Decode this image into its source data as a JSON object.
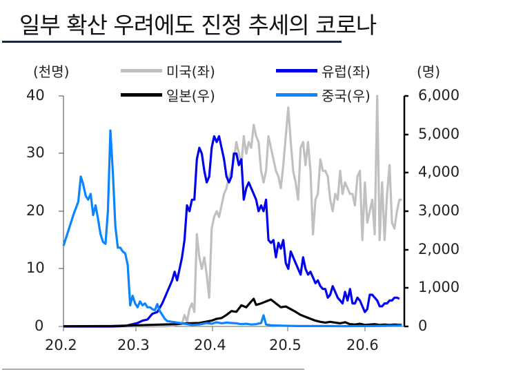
{
  "header": {
    "title": "일부 확산 우려에도 진정 추세의 코로나",
    "rule_color": "#0b2a5b"
  },
  "chart": {
    "left_unit": "(천명)",
    "right_unit": "(명)",
    "legend": [
      {
        "label": "미국(좌)",
        "color": "#c0c0c0"
      },
      {
        "label": "유럽(좌)",
        "color": "#0000ee"
      },
      {
        "label": "일본(우)",
        "color": "#000000"
      },
      {
        "label": "중국(우)",
        "color": "#0a84ff"
      }
    ],
    "left_ticks": [
      "40",
      "30",
      "20",
      "10",
      "0"
    ],
    "right_ticks": [
      "6,000",
      "5,000",
      "4,000",
      "3,000",
      "2,000",
      "1,000",
      "0"
    ],
    "x_ticks": [
      "20.2",
      "20.3",
      "20.4",
      "20.5",
      "20.6"
    ]
  },
  "chart_data": {
    "type": "line",
    "title": "일부 확산 우려에도 진정 추세의 코로나",
    "xlabel": "",
    "ylabel_left": "(천명)",
    "ylabel_right": "(명)",
    "ylim_left": [
      0,
      40
    ],
    "ylim_right": [
      0,
      6000
    ],
    "x_tick_labels": [
      "20.2",
      "20.3",
      "20.4",
      "20.5",
      "20.6"
    ],
    "x_unit": "days since 2020-02-01",
    "legend_position": "top",
    "grid": false,
    "series": [
      {
        "name": "미국(좌)",
        "axis": "left",
        "color": "#c0c0c0",
        "points": [
          [
            0,
            0
          ],
          [
            40,
            0
          ],
          [
            44,
            0.1
          ],
          [
            46,
            0.3
          ],
          [
            48,
            0.5
          ],
          [
            49,
            2
          ],
          [
            50,
            0.8
          ],
          [
            51,
            3
          ],
          [
            52,
            4
          ],
          [
            53,
            2.5
          ],
          [
            54,
            16
          ],
          [
            55,
            12
          ],
          [
            56,
            10
          ],
          [
            57,
            12
          ],
          [
            58,
            9
          ],
          [
            59,
            5
          ],
          [
            60,
            17
          ],
          [
            61,
            19
          ],
          [
            62,
            20
          ],
          [
            63,
            19
          ],
          [
            64,
            21
          ],
          [
            65,
            23
          ],
          [
            66,
            24
          ],
          [
            67,
            26
          ],
          [
            68,
            27
          ],
          [
            69,
            29
          ],
          [
            70,
            32
          ],
          [
            71,
            30
          ],
          [
            72,
            28
          ],
          [
            73,
            33
          ],
          [
            74,
            30
          ],
          [
            75,
            32
          ],
          [
            76,
            31
          ],
          [
            77,
            35
          ],
          [
            78,
            33
          ],
          [
            79,
            32
          ],
          [
            80,
            27
          ],
          [
            81,
            25
          ],
          [
            82,
            27
          ],
          [
            83,
            33
          ],
          [
            84,
            31
          ],
          [
            85,
            29
          ],
          [
            86,
            27
          ],
          [
            87,
            26
          ],
          [
            88,
            24
          ],
          [
            89,
            28
          ],
          [
            90,
            33
          ],
          [
            91,
            38
          ],
          [
            92,
            32
          ],
          [
            93,
            27
          ],
          [
            94,
            25
          ],
          [
            95,
            22
          ],
          [
            96,
            31
          ],
          [
            97,
            32
          ],
          [
            98,
            28
          ],
          [
            99,
            32
          ],
          [
            100,
            27
          ],
          [
            101,
            16
          ],
          [
            102,
            22
          ],
          [
            103,
            23
          ],
          [
            104,
            29
          ],
          [
            105,
            27
          ],
          [
            106,
            27
          ],
          [
            107,
            26
          ],
          [
            108,
            22
          ],
          [
            109,
            20
          ],
          [
            110,
            23
          ],
          [
            111,
            22
          ],
          [
            112,
            27
          ],
          [
            113,
            23
          ],
          [
            114,
            25
          ],
          [
            115,
            24
          ],
          [
            116,
            23
          ],
          [
            117,
            23
          ],
          [
            118,
            21
          ],
          [
            119,
            26
          ],
          [
            120,
            27
          ],
          [
            121,
            15
          ],
          [
            122,
            25
          ],
          [
            123,
            18
          ],
          [
            124,
            20
          ],
          [
            125,
            22
          ],
          [
            126,
            16
          ],
          [
            127,
            40
          ],
          [
            128,
            15
          ],
          [
            129,
            25
          ],
          [
            130,
            15
          ],
          [
            131,
            23
          ],
          [
            132,
            28
          ],
          [
            133,
            18
          ],
          [
            134,
            17
          ],
          [
            135,
            20
          ],
          [
            136,
            22
          ],
          [
            137,
            22
          ]
        ]
      },
      {
        "name": "유럽(좌)",
        "axis": "left",
        "color": "#0000ee",
        "points": [
          [
            0,
            0
          ],
          [
            20,
            0
          ],
          [
            25,
            0.1
          ],
          [
            28,
            0.4
          ],
          [
            30,
            0.6
          ],
          [
            32,
            1
          ],
          [
            34,
            1.2
          ],
          [
            36,
            2.2
          ],
          [
            38,
            2.5
          ],
          [
            40,
            4
          ],
          [
            42,
            6
          ],
          [
            44,
            8
          ],
          [
            45,
            9.5
          ],
          [
            46,
            8
          ],
          [
            47,
            10
          ],
          [
            48,
            12
          ],
          [
            49,
            15
          ],
          [
            50,
            21
          ],
          [
            51,
            20
          ],
          [
            52,
            22
          ],
          [
            53,
            22
          ],
          [
            54,
            29
          ],
          [
            55,
            31
          ],
          [
            56,
            30
          ],
          [
            57,
            27
          ],
          [
            58,
            25
          ],
          [
            59,
            26
          ],
          [
            60,
            31
          ],
          [
            61,
            33
          ],
          [
            62,
            32
          ],
          [
            63,
            33
          ],
          [
            64,
            31
          ],
          [
            65,
            29
          ],
          [
            66,
            26
          ],
          [
            67,
            25
          ],
          [
            68,
            26
          ],
          [
            69,
            30
          ],
          [
            70,
            30
          ],
          [
            71,
            28
          ],
          [
            72,
            29
          ],
          [
            73,
            22
          ],
          [
            74,
            24
          ],
          [
            75,
            25
          ],
          [
            76,
            24
          ],
          [
            77,
            23
          ],
          [
            78,
            22
          ],
          [
            79,
            20
          ],
          [
            80,
            21
          ],
          [
            81,
            20
          ],
          [
            82,
            22
          ],
          [
            83,
            15
          ],
          [
            84,
            14.5
          ],
          [
            85,
            15
          ],
          [
            86,
            12
          ],
          [
            87,
            14.5
          ],
          [
            88,
            13.5
          ],
          [
            89,
            15
          ],
          [
            90,
            11
          ],
          [
            91,
            10
          ],
          [
            92,
            13
          ],
          [
            93,
            12
          ],
          [
            94,
            11
          ],
          [
            95,
            10
          ],
          [
            96,
            9
          ],
          [
            97,
            12
          ],
          [
            98,
            10
          ],
          [
            99,
            9
          ],
          [
            100,
            9.5
          ],
          [
            101,
            8.5
          ],
          [
            102,
            7.5
          ],
          [
            103,
            8
          ],
          [
            104,
            7
          ],
          [
            105,
            6.5
          ],
          [
            106,
            6.5
          ],
          [
            107,
            5
          ],
          [
            108,
            5.5
          ],
          [
            109,
            7
          ],
          [
            110,
            6
          ],
          [
            111,
            5
          ],
          [
            112,
            4.5
          ],
          [
            113,
            4
          ],
          [
            114,
            6
          ],
          [
            115,
            4.5
          ],
          [
            116,
            6.5
          ],
          [
            117,
            4
          ],
          [
            118,
            4
          ],
          [
            119,
            5
          ],
          [
            120,
            4.5
          ],
          [
            121,
            3.5
          ],
          [
            122,
            2.5
          ],
          [
            123,
            3
          ],
          [
            124,
            5.5
          ],
          [
            125,
            5.5
          ],
          [
            126,
            5
          ],
          [
            127,
            4.5
          ],
          [
            128,
            3.5
          ],
          [
            129,
            3.5
          ],
          [
            130,
            4
          ],
          [
            131,
            4
          ],
          [
            132,
            4.5
          ],
          [
            133,
            4.5
          ],
          [
            134,
            5
          ],
          [
            135,
            5
          ],
          [
            136,
            4.8
          ]
        ]
      },
      {
        "name": "일본(우)",
        "axis": "right",
        "color": "#000000",
        "points": [
          [
            0,
            5
          ],
          [
            20,
            10
          ],
          [
            30,
            30
          ],
          [
            40,
            50
          ],
          [
            45,
            60
          ],
          [
            50,
            80
          ],
          [
            55,
            90
          ],
          [
            60,
            150
          ],
          [
            62,
            200
          ],
          [
            64,
            220
          ],
          [
            66,
            300
          ],
          [
            68,
            400
          ],
          [
            70,
            380
          ],
          [
            72,
            550
          ],
          [
            74,
            500
          ],
          [
            76,
            650
          ],
          [
            77,
            720
          ],
          [
            78,
            560
          ],
          [
            80,
            600
          ],
          [
            82,
            650
          ],
          [
            84,
            700
          ],
          [
            86,
            600
          ],
          [
            88,
            500
          ],
          [
            90,
            520
          ],
          [
            92,
            450
          ],
          [
            94,
            380
          ],
          [
            96,
            300
          ],
          [
            98,
            250
          ],
          [
            100,
            200
          ],
          [
            102,
            150
          ],
          [
            104,
            120
          ],
          [
            106,
            100
          ],
          [
            108,
            120
          ],
          [
            110,
            100
          ],
          [
            112,
            80
          ],
          [
            114,
            110
          ],
          [
            116,
            60
          ],
          [
            118,
            50
          ],
          [
            120,
            70
          ],
          [
            122,
            40
          ],
          [
            124,
            50
          ],
          [
            126,
            60
          ],
          [
            128,
            40
          ],
          [
            130,
            50
          ],
          [
            132,
            40
          ],
          [
            134,
            50
          ],
          [
            137,
            40
          ]
        ]
      },
      {
        "name": "중국(우)",
        "axis": "right",
        "color": "#0a84ff",
        "points": [
          [
            0,
            2100
          ],
          [
            2,
            2500
          ],
          [
            4,
            2900
          ],
          [
            6,
            3250
          ],
          [
            7,
            3900
          ],
          [
            8,
            3700
          ],
          [
            9,
            3400
          ],
          [
            10,
            3300
          ],
          [
            11,
            3450
          ],
          [
            12,
            2900
          ],
          [
            13,
            3150
          ],
          [
            14,
            2800
          ],
          [
            15,
            2400
          ],
          [
            16,
            2200
          ],
          [
            17,
            2150
          ],
          [
            18,
            3000
          ],
          [
            19,
            5100
          ],
          [
            20,
            4000
          ],
          [
            21,
            2600
          ],
          [
            22,
            2050
          ],
          [
            23,
            2050
          ],
          [
            24,
            1950
          ],
          [
            25,
            1900
          ],
          [
            26,
            1600
          ],
          [
            27,
            550
          ],
          [
            28,
            800
          ],
          [
            29,
            600
          ],
          [
            30,
            500
          ],
          [
            31,
            650
          ],
          [
            32,
            550
          ],
          [
            33,
            600
          ],
          [
            34,
            500
          ],
          [
            35,
            500
          ],
          [
            36,
            450
          ],
          [
            37,
            420
          ],
          [
            38,
            580
          ],
          [
            39,
            400
          ],
          [
            40,
            300
          ],
          [
            41,
            200
          ],
          [
            42,
            140
          ],
          [
            44,
            120
          ],
          [
            46,
            100
          ],
          [
            48,
            80
          ],
          [
            50,
            60
          ],
          [
            52,
            40
          ],
          [
            55,
            50
          ],
          [
            58,
            90
          ],
          [
            60,
            70
          ],
          [
            62,
            110
          ],
          [
            64,
            80
          ],
          [
            66,
            100
          ],
          [
            68,
            90
          ],
          [
            70,
            80
          ],
          [
            72,
            60
          ],
          [
            74,
            70
          ],
          [
            76,
            50
          ],
          [
            78,
            60
          ],
          [
            80,
            90
          ],
          [
            81,
            290
          ],
          [
            82,
            50
          ],
          [
            84,
            30
          ],
          [
            88,
            20
          ],
          [
            95,
            10
          ],
          [
            105,
            10
          ],
          [
            115,
            8
          ],
          [
            125,
            10
          ],
          [
            135,
            20
          ],
          [
            137,
            25
          ]
        ]
      }
    ]
  }
}
